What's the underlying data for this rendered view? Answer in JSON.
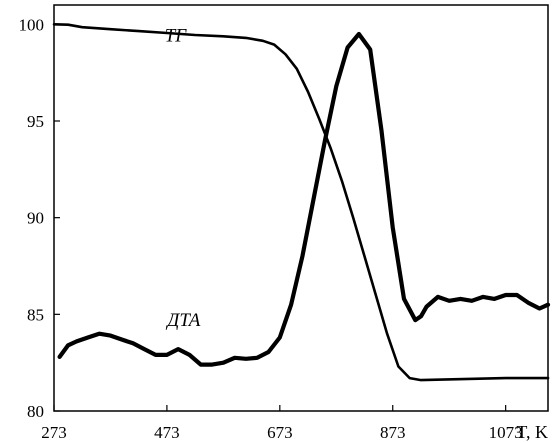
{
  "chart_data": {
    "type": "line",
    "title": "",
    "xlabel": "T, K",
    "ylabel": "",
    "xlim": [
      273,
      1148
    ],
    "ylim": [
      80,
      101
    ],
    "xticks": [
      273,
      473,
      673,
      873,
      1073
    ],
    "yticks": [
      80,
      85,
      90,
      95,
      100
    ],
    "grid": false,
    "series": [
      {
        "name": "ТГ",
        "color": "#000000",
        "x": [
          273,
          298,
          323,
          373,
          423,
          473,
          523,
          573,
          613,
          643,
          663,
          683,
          703,
          723,
          743,
          763,
          783,
          803,
          823,
          843,
          863,
          883,
          903,
          923,
          1073,
          1148
        ],
        "y": [
          100.0,
          99.98,
          99.85,
          99.75,
          99.65,
          99.55,
          99.45,
          99.38,
          99.3,
          99.15,
          98.95,
          98.45,
          97.7,
          96.5,
          95.1,
          93.6,
          91.9,
          90.0,
          88.0,
          86.0,
          84.0,
          82.3,
          81.7,
          81.6,
          81.7,
          81.7
        ]
      },
      {
        "name": "ДТА",
        "color": "#000000",
        "x": [
          283,
          298,
          313,
          333,
          353,
          373,
          393,
          413,
          433,
          453,
          473,
          493,
          513,
          533,
          553,
          573,
          593,
          613,
          633,
          653,
          673,
          693,
          713,
          733,
          753,
          773,
          793,
          813,
          833,
          853,
          873,
          893,
          913,
          923,
          933,
          953,
          973,
          993,
          1013,
          1033,
          1053,
          1073,
          1093,
          1113,
          1133,
          1148
        ],
        "y": [
          82.8,
          83.4,
          83.6,
          83.8,
          84.0,
          83.9,
          83.7,
          83.5,
          83.2,
          82.9,
          82.9,
          83.2,
          82.9,
          82.4,
          82.4,
          82.5,
          82.75,
          82.7,
          82.75,
          83.05,
          83.8,
          85.5,
          88.0,
          91.0,
          94.0,
          96.8,
          98.8,
          99.5,
          98.7,
          94.5,
          89.5,
          85.8,
          84.7,
          84.9,
          85.4,
          85.9,
          85.7,
          85.8,
          85.7,
          85.9,
          85.8,
          86.0,
          86.0,
          85.6,
          85.3,
          85.5
        ]
      }
    ],
    "annotations": [
      {
        "text": "ТГ",
        "x": 488,
        "y": 99.1
      },
      {
        "text": "ДТА",
        "x": 503,
        "y": 84.4
      }
    ]
  }
}
